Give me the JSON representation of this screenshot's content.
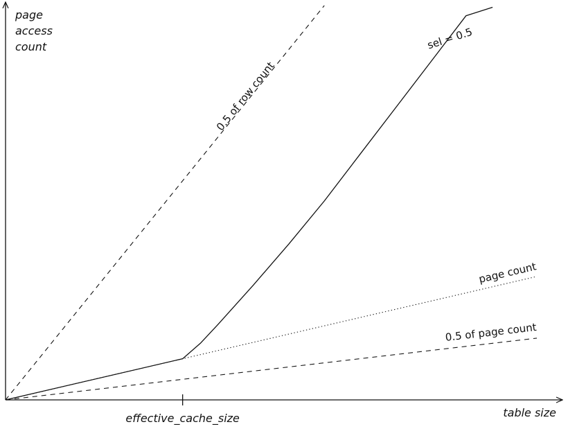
{
  "chart_data": {
    "type": "line",
    "title": "",
    "xlabel": "table size",
    "ylabel_lines": [
      "page",
      "access",
      "count"
    ],
    "xtick_label": "effective_cache_size",
    "xtick_value": 10,
    "xlim": [
      0,
      30
    ],
    "ylim": [
      0,
      23
    ],
    "grid": false,
    "legend": "none",
    "series": [
      {
        "name": "0.5 of row count",
        "style": "dashed",
        "x": [
          0,
          18
        ],
        "y": [
          0,
          23
        ]
      },
      {
        "name": "sel = 0.5",
        "style": "solid",
        "x": [
          0,
          10,
          11,
          12,
          14,
          16,
          18,
          20,
          22,
          24,
          26,
          27.5
        ],
        "y": [
          0,
          2.4,
          3.3,
          4.4,
          6.7,
          9.1,
          11.6,
          14.3,
          17.0,
          19.7,
          22.4,
          22.9
        ]
      },
      {
        "name": "page count",
        "style": "dotted",
        "x": [
          0,
          30
        ],
        "y": [
          0,
          7.2
        ]
      },
      {
        "name": "0.5 of page count",
        "style": "dashed",
        "x": [
          0,
          30
        ],
        "y": [
          0,
          3.6
        ]
      }
    ],
    "annotations": [
      {
        "text": "0.5 of row count",
        "series": 0
      },
      {
        "text": "sel = 0.5",
        "series": 1
      },
      {
        "text": "page count",
        "series": 2
      },
      {
        "text": "0.5 of page count",
        "series": 3
      }
    ]
  }
}
